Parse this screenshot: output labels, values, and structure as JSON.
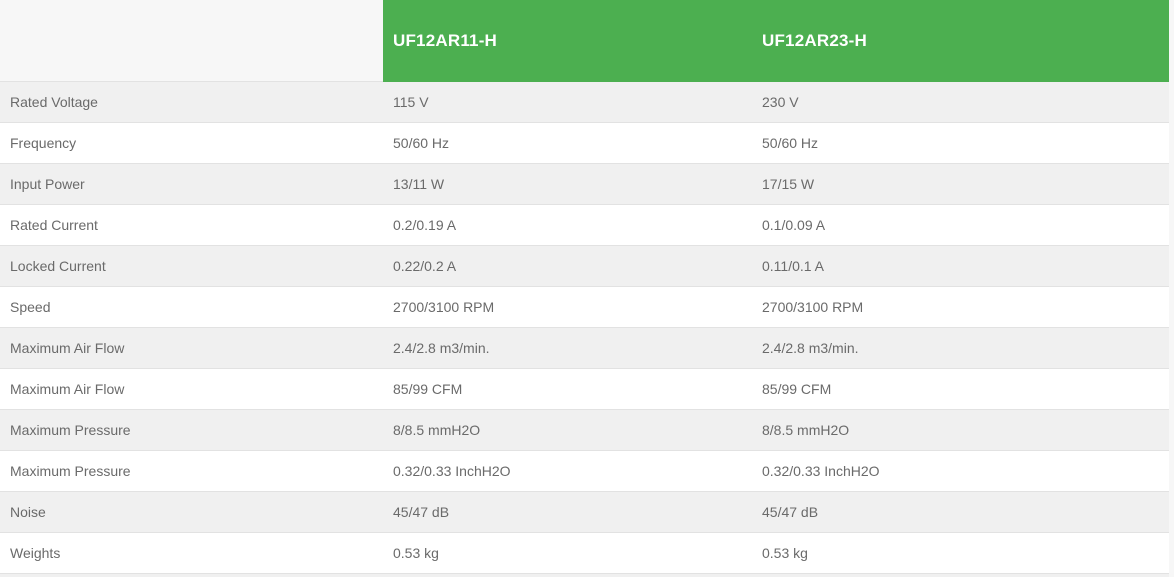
{
  "table": {
    "products": [
      "UF12AR11-H",
      "UF12AR23-H"
    ],
    "rows": [
      {
        "label": "Rated Voltage",
        "values": [
          "115 V",
          "230 V"
        ]
      },
      {
        "label": "Frequency",
        "values": [
          "50/60 Hz",
          "50/60 Hz"
        ]
      },
      {
        "label": "Input Power",
        "values": [
          "13/11 W",
          "17/15 W"
        ]
      },
      {
        "label": "Rated Current",
        "values": [
          "0.2/0.19 A",
          "0.1/0.09 A"
        ]
      },
      {
        "label": "Locked Current",
        "values": [
          "0.22/0.2 A",
          "0.11/0.1 A"
        ]
      },
      {
        "label": "Speed",
        "values": [
          "2700/3100 RPM",
          "2700/3100 RPM"
        ]
      },
      {
        "label": "Maximum Air Flow",
        "values": [
          "2.4/2.8 m3/min.",
          "2.4/2.8 m3/min."
        ]
      },
      {
        "label": "Maximum Air Flow",
        "values": [
          "85/99 CFM",
          "85/99 CFM"
        ]
      },
      {
        "label": "Maximum Pressure",
        "values": [
          "8/8.5 mmH2O",
          "8/8.5 mmH2O"
        ]
      },
      {
        "label": "Maximum Pressure",
        "values": [
          "0.32/0.33 InchH2O",
          "0.32/0.33 InchH2O"
        ]
      },
      {
        "label": "Noise",
        "values": [
          "45/47 dB",
          "45/47 dB"
        ]
      },
      {
        "label": "Weights",
        "values": [
          "0.53 kg",
          "0.53 kg"
        ]
      }
    ],
    "colors": {
      "header_bg": "#4caf50",
      "header_text": "#ffffff",
      "row_alt_bg": "#f0f0f0",
      "row_bg": "#ffffff",
      "border": "#e2e2e2",
      "text": "#6a6a6a",
      "page_bg": "#f7f7f7"
    }
  }
}
